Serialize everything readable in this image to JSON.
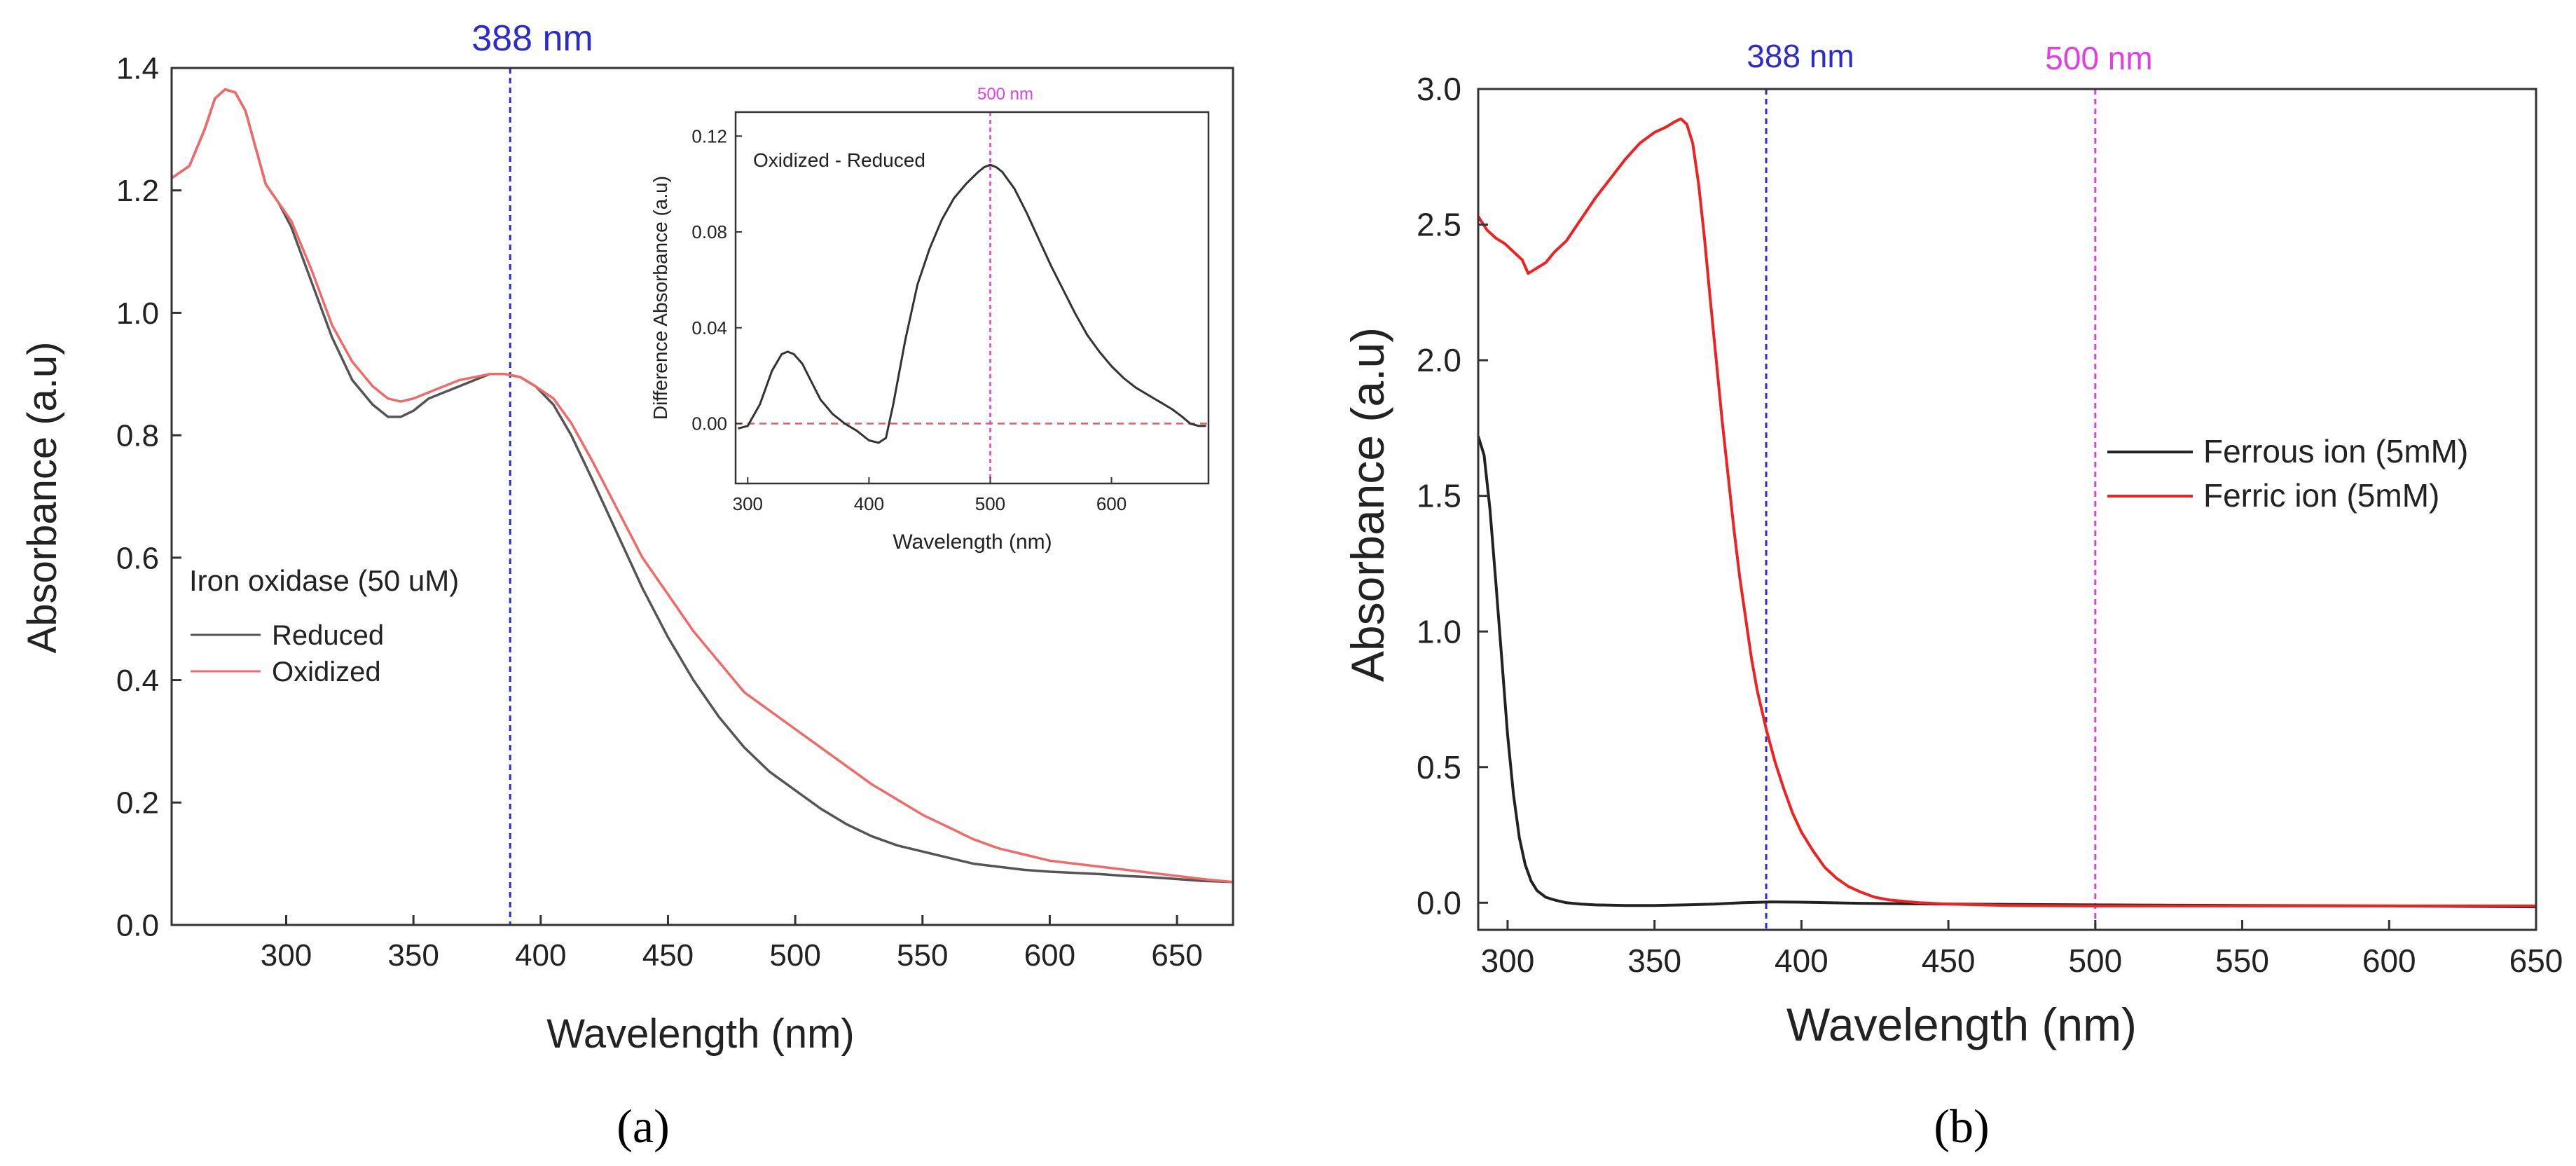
{
  "chart_data": [
    {
      "id": "a",
      "type": "line",
      "panel_label_text": "(a)",
      "xlabel": "Wavelength (nm)",
      "ylabel": "Absorbance (a.u)",
      "xlim": [
        255,
        672
      ],
      "ylim": [
        0,
        1.4
      ],
      "xticks": [
        300,
        350,
        400,
        450,
        500,
        550,
        600,
        650
      ],
      "yticks": [
        0.0,
        0.2,
        0.4,
        0.6,
        0.8,
        1.0,
        1.2,
        1.4
      ],
      "ytick_labels": [
        "0.0",
        "0.2",
        "0.4",
        "0.6",
        "0.8",
        "1.0",
        "1.2",
        "1.4"
      ],
      "legend_title": "Iron oxidase (50 uM)",
      "legend_position": "left",
      "vline": {
        "x": 388,
        "label": "388 nm",
        "color": "#2b2bd0"
      },
      "series": [
        {
          "name": "Reduced",
          "color": "#555555",
          "x": [
            255,
            262,
            268,
            272,
            276,
            280,
            284,
            288,
            292,
            297,
            302,
            310,
            318,
            326,
            334,
            340,
            345,
            350,
            356,
            362,
            368,
            374,
            380,
            386,
            392,
            398,
            405,
            412,
            420,
            430,
            440,
            450,
            460,
            470,
            480,
            490,
            500,
            510,
            520,
            530,
            540,
            550,
            560,
            570,
            580,
            590,
            600,
            610,
            620,
            630,
            640,
            650,
            660,
            672
          ],
          "y": [
            1.22,
            1.24,
            1.3,
            1.35,
            1.365,
            1.36,
            1.33,
            1.27,
            1.21,
            1.18,
            1.14,
            1.05,
            0.96,
            0.89,
            0.85,
            0.83,
            0.83,
            0.84,
            0.86,
            0.87,
            0.88,
            0.89,
            0.9,
            0.9,
            0.895,
            0.88,
            0.85,
            0.8,
            0.73,
            0.64,
            0.55,
            0.47,
            0.4,
            0.34,
            0.29,
            0.25,
            0.22,
            0.19,
            0.165,
            0.145,
            0.13,
            0.12,
            0.11,
            0.1,
            0.095,
            0.09,
            0.087,
            0.085,
            0.083,
            0.08,
            0.078,
            0.075,
            0.072,
            0.07
          ]
        },
        {
          "name": "Oxidized",
          "color": "#f06a6a",
          "x": [
            255,
            262,
            268,
            272,
            276,
            280,
            284,
            288,
            292,
            297,
            302,
            310,
            318,
            326,
            334,
            340,
            345,
            350,
            356,
            362,
            368,
            374,
            380,
            386,
            392,
            398,
            405,
            412,
            420,
            430,
            440,
            450,
            460,
            470,
            480,
            490,
            500,
            510,
            520,
            530,
            540,
            550,
            560,
            570,
            580,
            590,
            600,
            610,
            620,
            630,
            640,
            650,
            660,
            672
          ],
          "y": [
            1.22,
            1.24,
            1.3,
            1.35,
            1.365,
            1.36,
            1.33,
            1.27,
            1.21,
            1.18,
            1.15,
            1.07,
            0.98,
            0.92,
            0.88,
            0.86,
            0.855,
            0.86,
            0.87,
            0.88,
            0.89,
            0.895,
            0.9,
            0.9,
            0.895,
            0.88,
            0.86,
            0.82,
            0.76,
            0.68,
            0.6,
            0.54,
            0.48,
            0.43,
            0.38,
            0.35,
            0.32,
            0.29,
            0.26,
            0.23,
            0.205,
            0.18,
            0.16,
            0.14,
            0.125,
            0.115,
            0.105,
            0.1,
            0.095,
            0.09,
            0.085,
            0.08,
            0.075,
            0.07
          ]
        }
      ],
      "inset": {
        "type": "line",
        "label": "Oxidized - Reduced",
        "xlabel": "Wavelength (nm)",
        "ylabel": "Difference Absorbance (a.u)",
        "xlim": [
          290,
          680
        ],
        "ylim": [
          -0.025,
          0.13
        ],
        "xticks": [
          300,
          400,
          500,
          600
        ],
        "yticks": [
          0.0,
          0.04,
          0.08,
          0.12
        ],
        "ytick_labels": [
          "0.00",
          "0.04",
          "0.08",
          "0.12"
        ],
        "vline": {
          "x": 500,
          "label": "500 nm",
          "color": "#e040e0"
        },
        "hline": {
          "y": 0.0,
          "color": "#e06060"
        },
        "series": [
          {
            "name": "Oxidized - Reduced",
            "color": "#333333",
            "x": [
              292,
              300,
              310,
              320,
              328,
              333,
              338,
              345,
              352,
              360,
              370,
              380,
              390,
              400,
              408,
              414,
              420,
              430,
              440,
              450,
              460,
              470,
              480,
              490,
              495,
              500,
              505,
              510,
              520,
              530,
              540,
              550,
              560,
              570,
              580,
              590,
              600,
              610,
              620,
              630,
              640,
              650,
              658,
              665,
              672,
              678
            ],
            "y": [
              -0.002,
              -0.001,
              0.008,
              0.022,
              0.029,
              0.03,
              0.029,
              0.025,
              0.018,
              0.01,
              0.004,
              0.0,
              -0.003,
              -0.007,
              -0.008,
              -0.006,
              0.008,
              0.035,
              0.058,
              0.073,
              0.085,
              0.094,
              0.1,
              0.105,
              0.107,
              0.108,
              0.107,
              0.105,
              0.098,
              0.088,
              0.077,
              0.066,
              0.056,
              0.046,
              0.037,
              0.03,
              0.024,
              0.019,
              0.015,
              0.012,
              0.009,
              0.006,
              0.003,
              0.0,
              -0.001,
              -0.001
            ]
          }
        ]
      }
    },
    {
      "id": "b",
      "type": "line",
      "panel_label_text": "(b)",
      "xlabel": "Wavelength (nm)",
      "ylabel": "Absorbance (a.u)",
      "xlim": [
        290,
        650
      ],
      "ylim": [
        -0.1,
        3.0
      ],
      "xticks": [
        300,
        350,
        400,
        450,
        500,
        550,
        600,
        650
      ],
      "yticks": [
        0.0,
        0.5,
        1.0,
        1.5,
        2.0,
        2.5,
        3.0
      ],
      "ytick_labels": [
        "0.0",
        "0.5",
        "1.0",
        "1.5",
        "2.0",
        "2.5",
        "3.0"
      ],
      "legend_position": "right",
      "vlines": [
        {
          "x": 388,
          "label": "388 nm",
          "color": "#2b2bd0"
        },
        {
          "x": 500,
          "label": "500 nm",
          "color": "#e040e0"
        }
      ],
      "series": [
        {
          "name": "Ferrous ion (5mM)",
          "color": "#222222",
          "x": [
            290,
            292,
            294,
            296,
            298,
            300,
            302,
            304,
            306,
            308,
            310,
            313,
            316,
            320,
            325,
            330,
            340,
            350,
            360,
            370,
            380,
            390,
            400,
            420,
            450,
            500,
            550,
            600,
            650
          ],
          "y": [
            1.72,
            1.65,
            1.45,
            1.18,
            0.9,
            0.62,
            0.4,
            0.24,
            0.14,
            0.08,
            0.045,
            0.02,
            0.01,
            0.0,
            -0.005,
            -0.008,
            -0.01,
            -0.01,
            -0.008,
            -0.005,
            0.0,
            0.003,
            0.002,
            -0.002,
            -0.005,
            -0.008,
            -0.01,
            -0.012,
            -0.015
          ]
        },
        {
          "name": "Ferric ion (5mM)",
          "color": "#ee2222",
          "x": [
            290,
            293,
            296,
            299,
            302,
            305,
            307,
            310,
            313,
            316,
            320,
            325,
            330,
            335,
            340,
            345,
            350,
            354,
            357,
            359,
            361,
            363,
            365,
            367,
            369,
            371,
            373,
            375,
            377,
            379,
            381,
            383,
            385,
            388,
            391,
            394,
            397,
            400,
            404,
            408,
            412,
            416,
            420,
            425,
            430,
            440,
            450,
            470,
            500,
            550,
            600,
            650
          ],
          "y": [
            2.53,
            2.48,
            2.45,
            2.43,
            2.4,
            2.37,
            2.32,
            2.34,
            2.36,
            2.4,
            2.44,
            2.52,
            2.6,
            2.67,
            2.74,
            2.8,
            2.84,
            2.86,
            2.88,
            2.89,
            2.87,
            2.8,
            2.65,
            2.45,
            2.22,
            2.0,
            1.78,
            1.58,
            1.38,
            1.2,
            1.05,
            0.9,
            0.78,
            0.64,
            0.52,
            0.42,
            0.33,
            0.26,
            0.19,
            0.13,
            0.09,
            0.06,
            0.04,
            0.02,
            0.01,
            0.0,
            -0.005,
            -0.01,
            -0.012,
            -0.012,
            -0.012,
            -0.012
          ]
        }
      ]
    }
  ]
}
